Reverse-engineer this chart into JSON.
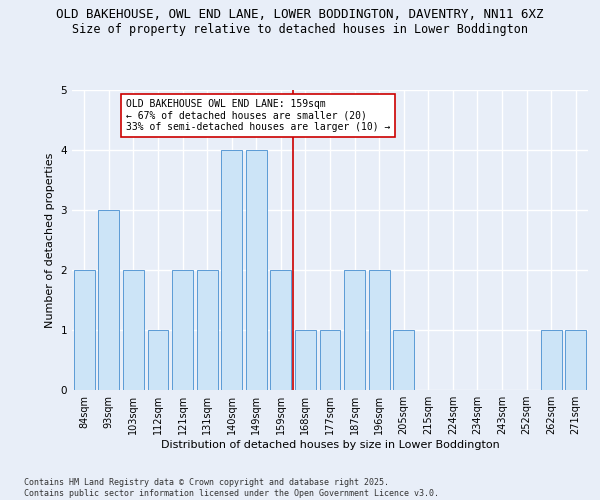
{
  "title_line1": "OLD BAKEHOUSE, OWL END LANE, LOWER BODDINGTON, DAVENTRY, NN11 6XZ",
  "title_line2": "Size of property relative to detached houses in Lower Boddington",
  "xlabel": "Distribution of detached houses by size in Lower Boddington",
  "ylabel": "Number of detached properties",
  "categories": [
    "84sqm",
    "93sqm",
    "103sqm",
    "112sqm",
    "121sqm",
    "131sqm",
    "140sqm",
    "149sqm",
    "159sqm",
    "168sqm",
    "177sqm",
    "187sqm",
    "196sqm",
    "205sqm",
    "215sqm",
    "224sqm",
    "234sqm",
    "243sqm",
    "252sqm",
    "262sqm",
    "271sqm"
  ],
  "values": [
    2,
    3,
    2,
    1,
    2,
    2,
    4,
    4,
    2,
    1,
    1,
    2,
    2,
    1,
    0,
    0,
    0,
    0,
    0,
    1,
    1
  ],
  "bar_color": "#cce4f7",
  "bar_edge_color": "#5b9bd5",
  "reference_line_index": 8,
  "reference_line_color": "#cc0000",
  "annotation_text": "OLD BAKEHOUSE OWL END LANE: 159sqm\n← 67% of detached houses are smaller (20)\n33% of semi-detached houses are larger (10) →",
  "annotation_box_color": "#ffffff",
  "annotation_box_edge_color": "#cc0000",
  "ylim": [
    0,
    5
  ],
  "yticks": [
    0,
    1,
    2,
    3,
    4,
    5
  ],
  "footnote": "Contains HM Land Registry data © Crown copyright and database right 2025.\nContains public sector information licensed under the Open Government Licence v3.0.",
  "background_color": "#e8eef8",
  "grid_color": "#ffffff",
  "title_fontsize": 9,
  "subtitle_fontsize": 8.5,
  "axis_label_fontsize": 8,
  "tick_fontsize": 7,
  "annotation_fontsize": 7,
  "footnote_fontsize": 6
}
